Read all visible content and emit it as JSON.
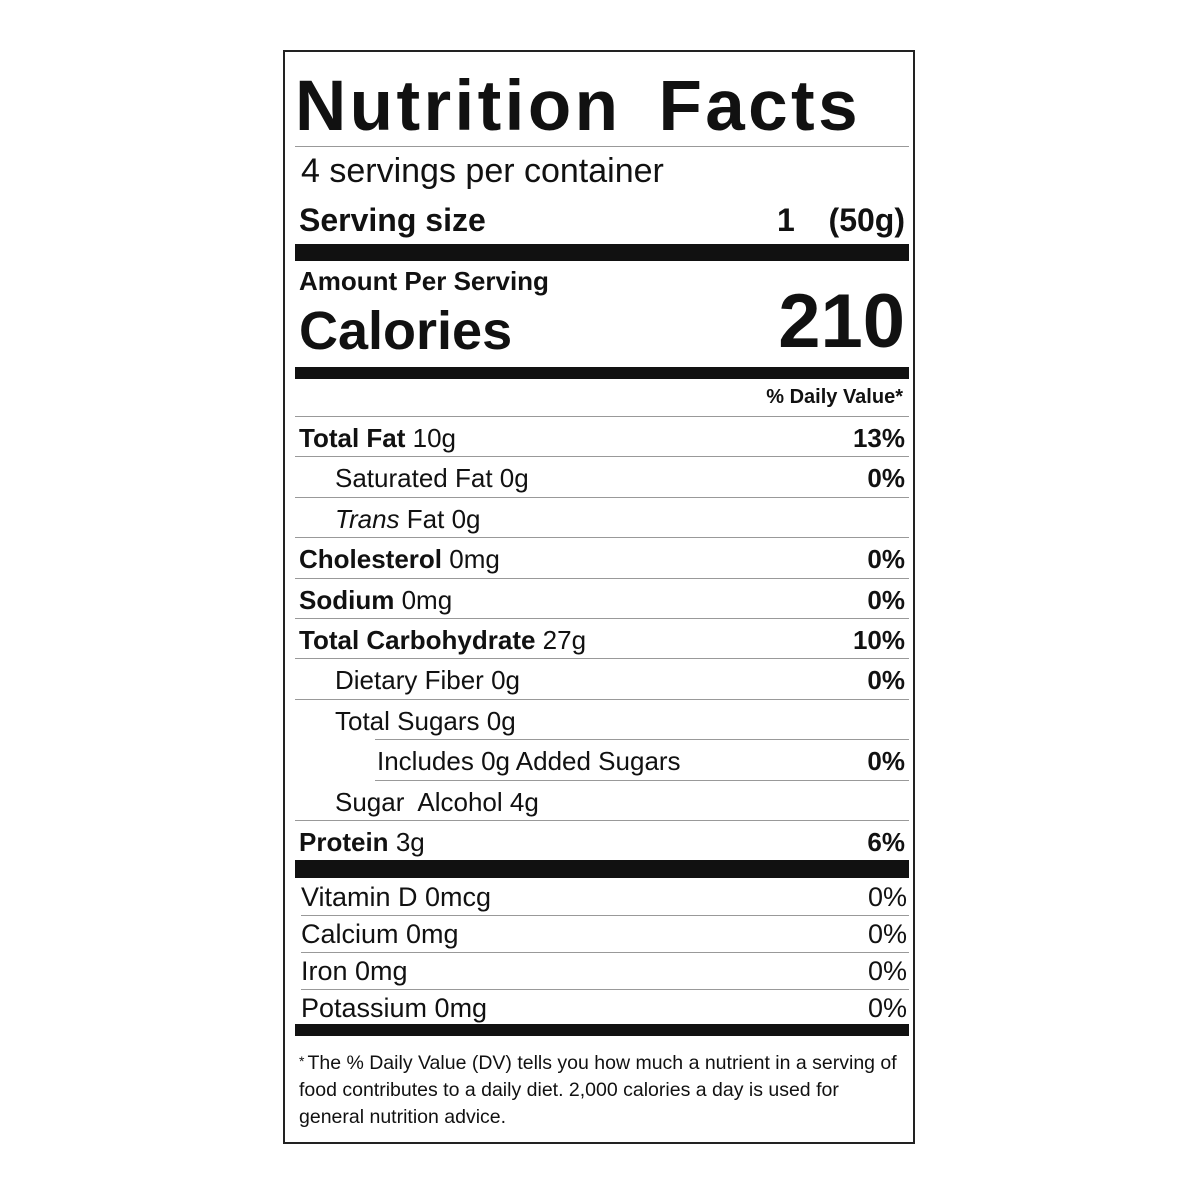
{
  "title": "Nutrition Facts",
  "servings_per_container": "4 servings per container",
  "serving_size": {
    "label": "Serving size",
    "value": "1  (50g)"
  },
  "amount_per_serving": "Amount Per Serving",
  "calories": {
    "label": "Calories",
    "value": "210"
  },
  "daily_value_header": "% Daily Value*",
  "nutrients": [
    {
      "name": "Total Fat",
      "amount": "10g",
      "dv": "13%",
      "indent": 0,
      "bold": true
    },
    {
      "name": "Saturated Fat",
      "amount": "0g",
      "dv": "0%",
      "indent": 1,
      "bold": false
    },
    {
      "name": "Trans",
      "name_rest": "Fat",
      "amount": "0g",
      "dv": "",
      "indent": 1,
      "bold": false
    },
    {
      "name": "Cholesterol",
      "amount": "0mg",
      "dv": "0%",
      "indent": 0,
      "bold": true
    },
    {
      "name": "Sodium",
      "amount": "0mg",
      "dv": "0%",
      "indent": 0,
      "bold": true
    },
    {
      "name": "Total Carbohydrate",
      "amount": "27g",
      "dv": "10%",
      "indent": 0,
      "bold": true
    },
    {
      "name": "Dietary Fiber",
      "amount": "0g",
      "dv": "0%",
      "indent": 1,
      "bold": false
    },
    {
      "name": "Total Sugars",
      "amount": "0g",
      "dv": "",
      "indent": 1,
      "bold": false
    },
    {
      "name": "Includes 0g Added Sugars",
      "amount": "",
      "dv": "0%",
      "indent": 2,
      "bold": false
    },
    {
      "name": "Sugar  Alcohol",
      "amount": "4g",
      "dv": "",
      "indent": 1,
      "bold": false
    },
    {
      "name": "Protein",
      "amount": "3g",
      "dv": "6%",
      "indent": 0,
      "bold": true
    }
  ],
  "vitamins": [
    {
      "name": "Vitamin D 0mcg",
      "dv": "0%"
    },
    {
      "name": "Calcium 0mg",
      "dv": "0%"
    },
    {
      "name": "Iron 0mg",
      "dv": "0%"
    },
    {
      "name": "Potassium 0mg",
      "dv": "0%"
    }
  ],
  "footnote": {
    "star": "*",
    "text": "The % Daily Value (DV) tells you how much a nutrient in a serving of food contributes to a daily diet. 2,000 calories a day is used for general nutrition advice."
  }
}
